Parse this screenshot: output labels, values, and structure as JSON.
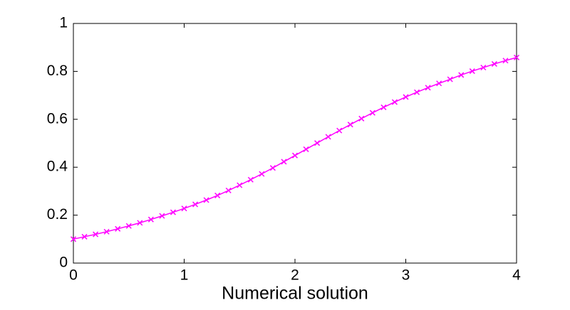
{
  "chart_data": {
    "type": "line",
    "xlabel": "Numerical solution",
    "x": [
      0,
      0.1,
      0.2,
      0.3,
      0.4,
      0.5,
      0.6,
      0.7,
      0.8,
      0.9,
      1,
      1.1,
      1.2,
      1.3,
      1.4,
      1.5,
      1.6,
      1.7,
      1.8,
      1.9,
      2,
      2.1,
      2.2,
      2.3,
      2.4,
      2.5,
      2.6,
      2.7,
      2.8,
      2.9,
      3,
      3.1,
      3.2,
      3.3,
      3.4,
      3.5,
      3.6,
      3.7,
      3.8,
      3.9,
      4
    ],
    "series": [
      {
        "color": "#ff00ff",
        "marker": "x",
        "values": [
          0.1,
          0.11,
          0.12,
          0.131,
          0.143,
          0.155,
          0.168,
          0.182,
          0.197,
          0.212,
          0.228,
          0.245,
          0.263,
          0.282,
          0.303,
          0.325,
          0.348,
          0.372,
          0.397,
          0.423,
          0.449,
          0.475,
          0.501,
          0.527,
          0.553,
          0.578,
          0.603,
          0.627,
          0.65,
          0.672,
          0.693,
          0.713,
          0.732,
          0.75,
          0.767,
          0.785,
          0.801,
          0.816,
          0.831,
          0.845,
          0.858
        ]
      }
    ],
    "xlim": [
      0,
      4
    ],
    "xticks": [
      0,
      1,
      2,
      3,
      4
    ],
    "ylim": [
      0,
      1
    ],
    "yticks": [
      0,
      0.2,
      0.4,
      0.6,
      0.8,
      1
    ],
    "grid": false
  }
}
